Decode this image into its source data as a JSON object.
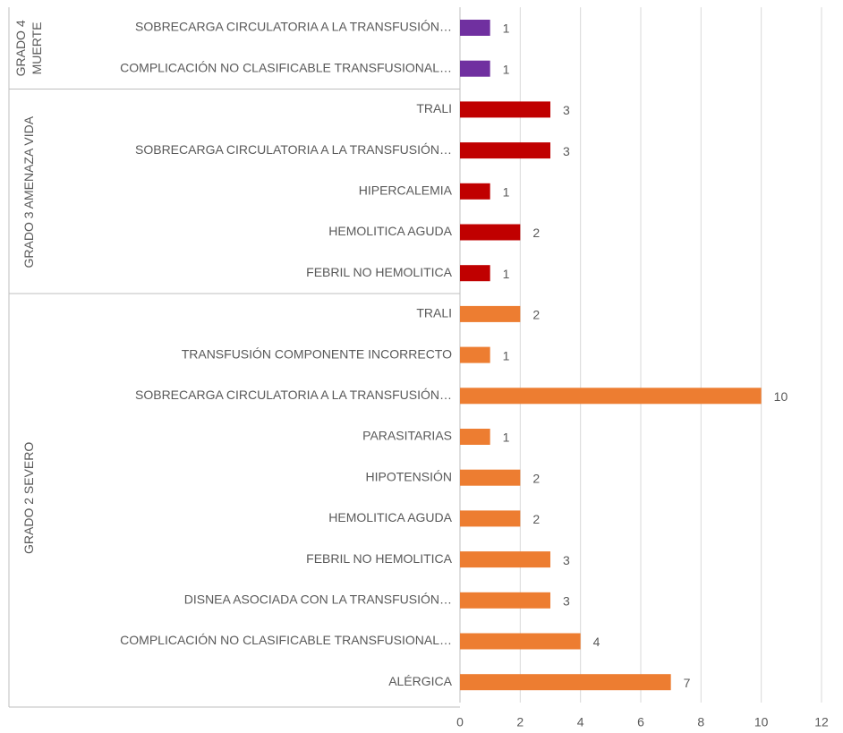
{
  "chart_data": {
    "type": "bar",
    "orientation": "horizontal",
    "groups": [
      {
        "label": "GRADO 4 MUERTE",
        "color": "#7030a0",
        "categories": [
          "SOBRECARGA CIRCULATORIA A LA TRANSFUSIÓN…",
          "COMPLICACIÓN NO CLASIFICABLE TRANSFUSIONAL…"
        ],
        "values": [
          1,
          1
        ]
      },
      {
        "label": "GRADO 3 AMENAZA VIDA",
        "color": "#c00000",
        "categories": [
          "TRALI",
          "SOBRECARGA CIRCULATORIA A LA TRANSFUSIÓN…",
          "HIPERCALEMIA",
          "HEMOLITICA AGUDA",
          "FEBRIL NO HEMOLITICA"
        ],
        "values": [
          3,
          3,
          1,
          2,
          1
        ]
      },
      {
        "label": "GRADO 2 SEVERO",
        "color": "#ed7d31",
        "categories": [
          "TRALI",
          "TRANSFUSIÓN COMPONENTE INCORRECTO",
          "SOBRECARGA CIRCULATORIA A LA TRANSFUSIÓN…",
          "PARASITARIAS",
          "HIPOTENSIÓN",
          "HEMOLITICA AGUDA",
          "FEBRIL NO HEMOLITICA",
          "DISNEA ASOCIADA CON LA TRANSFUSIÓN…",
          "COMPLICACIÓN NO CLASIFICABLE TRANSFUSIONAL…",
          "ALÉRGICA"
        ],
        "values": [
          2,
          1,
          10,
          1,
          2,
          2,
          3,
          3,
          4,
          7
        ]
      }
    ],
    "xlim": [
      0,
      12
    ],
    "xticks": [
      0,
      2,
      4,
      6,
      8,
      10,
      12
    ],
    "grid": true
  }
}
